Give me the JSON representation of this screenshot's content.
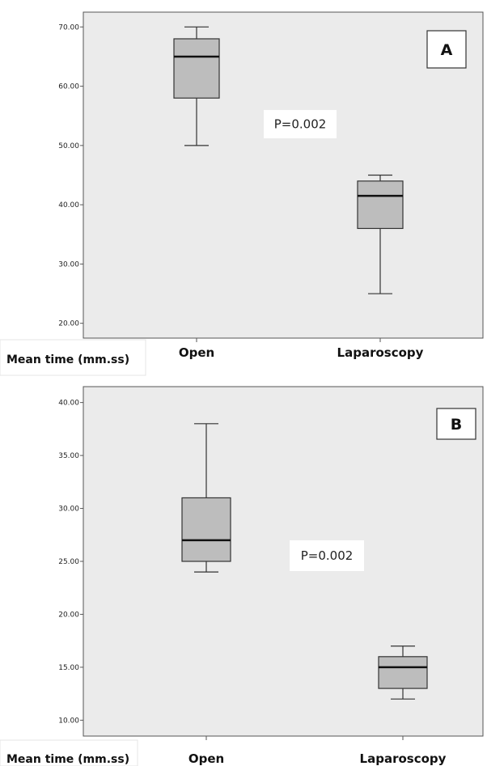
{
  "chart_data": [
    {
      "type": "boxplot",
      "panel_label": "A",
      "xlabel": "Mean time (mm.ss)",
      "categories": [
        "Open",
        "Laparoscopy"
      ],
      "ylim": [
        17.5,
        72.5
      ],
      "yticks": [
        "20.00",
        "30.00",
        "40.00",
        "50.00",
        "60.00",
        "70.00"
      ],
      "ytick_values": [
        20,
        30,
        40,
        50,
        60,
        70
      ],
      "boxes": [
        {
          "category": "Open",
          "min": 50,
          "q1": 58,
          "median": 65,
          "q3": 68,
          "max": 70
        },
        {
          "category": "Laparoscopy",
          "min": 25,
          "q1": 36,
          "median": 41.5,
          "q3": 44,
          "max": 45
        }
      ],
      "annotation": "P=0.002"
    },
    {
      "type": "boxplot",
      "panel_label": "B",
      "xlabel": "Mean time (mm.ss)",
      "categories": [
        "Open",
        "Laparoscopy"
      ],
      "ylim": [
        8.5,
        41.5
      ],
      "yticks": [
        "10.00",
        "15.00",
        "20.00",
        "25.00",
        "30.00",
        "35.00",
        "40.00"
      ],
      "ytick_values": [
        10,
        15,
        20,
        25,
        30,
        35,
        40
      ],
      "boxes": [
        {
          "category": "Open",
          "min": 24,
          "q1": 25,
          "median": 27,
          "q3": 31,
          "max": 38
        },
        {
          "category": "Laparoscopy",
          "min": 12,
          "q1": 13,
          "median": 15,
          "q3": 16,
          "max": 17
        }
      ],
      "annotation": "P=0.002"
    }
  ],
  "colors": {
    "plot_bg": "#ebebeb",
    "box_fill": "#bdbdbd",
    "stroke": "#333333",
    "label_bg": "#ffffff"
  }
}
